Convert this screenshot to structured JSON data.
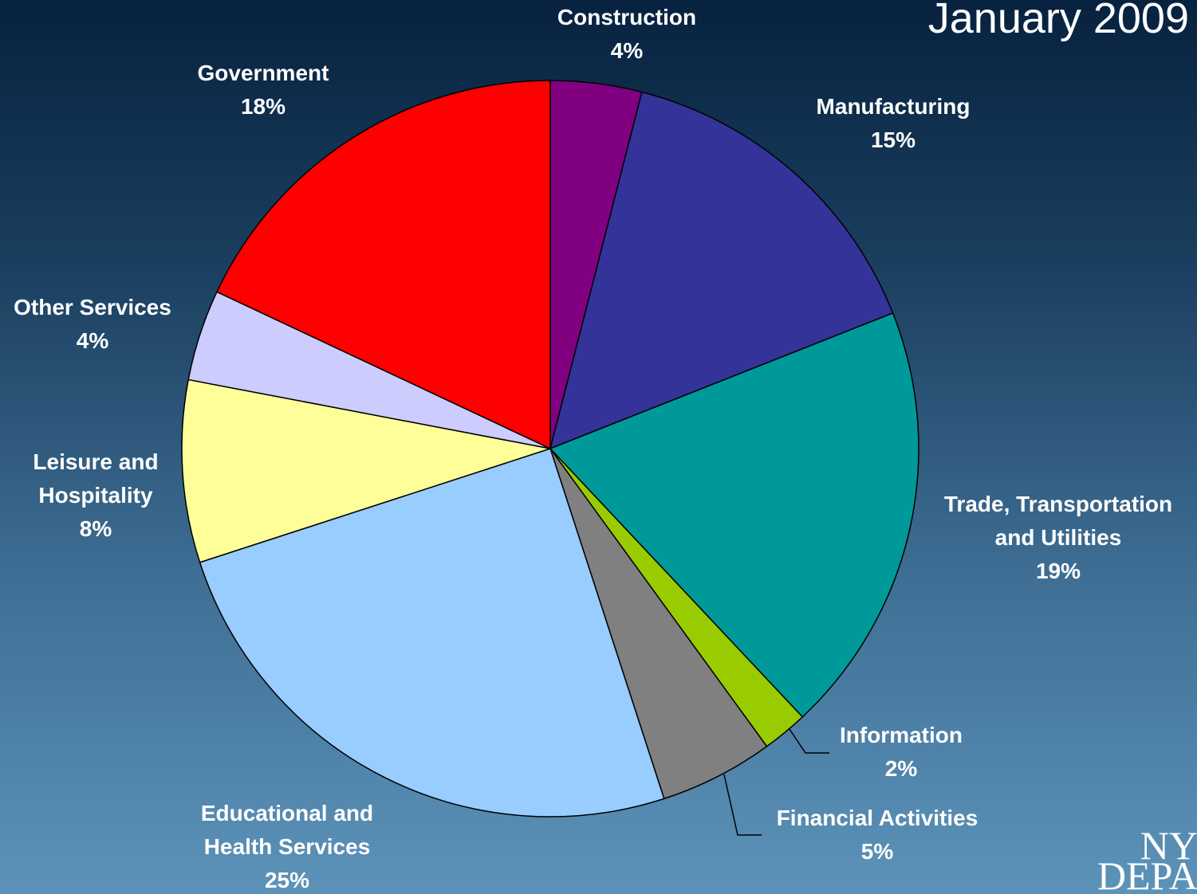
{
  "chart_data": {
    "type": "pie",
    "title": "January 2009",
    "categories": [
      "Construction",
      "Manufacturing",
      "Trade, Transportation and Utilities",
      "Information",
      "Financial Activities",
      "Educational and Health Services",
      "Leisure and Hospitality",
      "Other Services",
      "Government"
    ],
    "values": [
      4,
      15,
      19,
      2,
      5,
      25,
      8,
      4,
      18
    ],
    "value_labels": [
      "4%",
      "15%",
      "19%",
      "2%",
      "5%",
      "25%",
      "8%",
      "4%",
      "18%"
    ],
    "colors": [
      "#800080",
      "#333399",
      "#009999",
      "#99cc00",
      "#808080",
      "#99ccff",
      "#ffff99",
      "#ccccff",
      "#ff0000"
    ]
  },
  "logo": [
    "NY",
    "DEPA"
  ]
}
